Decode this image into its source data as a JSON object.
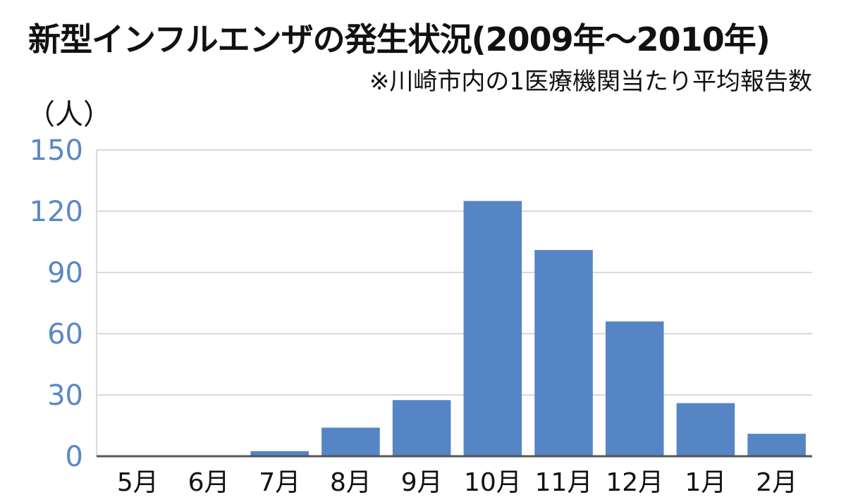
{
  "header": {
    "title": "新型インフルエンザの発生状況(2009年〜2010年)",
    "subtitle": "※川崎市内の1医療機関当たり平均報告数",
    "unit": "（人）"
  },
  "colors": {
    "bar": "#5585c5",
    "ytick": "#5b88c4",
    "grid": "#d9d9d9",
    "axis": "#555555",
    "text": "#111111"
  },
  "chart_data": {
    "type": "bar",
    "title": "新型インフルエンザの発生状況(2009年〜2010年)",
    "subtitle": "※川崎市内の1医療機関当たり平均報告数",
    "ylabel": "（人）",
    "xlabel": "",
    "categories": [
      "5月",
      "6月",
      "7月",
      "8月",
      "9月",
      "10月",
      "11月",
      "12月",
      "1月",
      "2月"
    ],
    "values": [
      0.3,
      0.3,
      2.5,
      14,
      27.5,
      125,
      101,
      66,
      26,
      11
    ],
    "ylim": [
      0,
      150
    ],
    "yticks": [
      0,
      30,
      60,
      90,
      120,
      150
    ],
    "grid": true,
    "legend": "none"
  }
}
